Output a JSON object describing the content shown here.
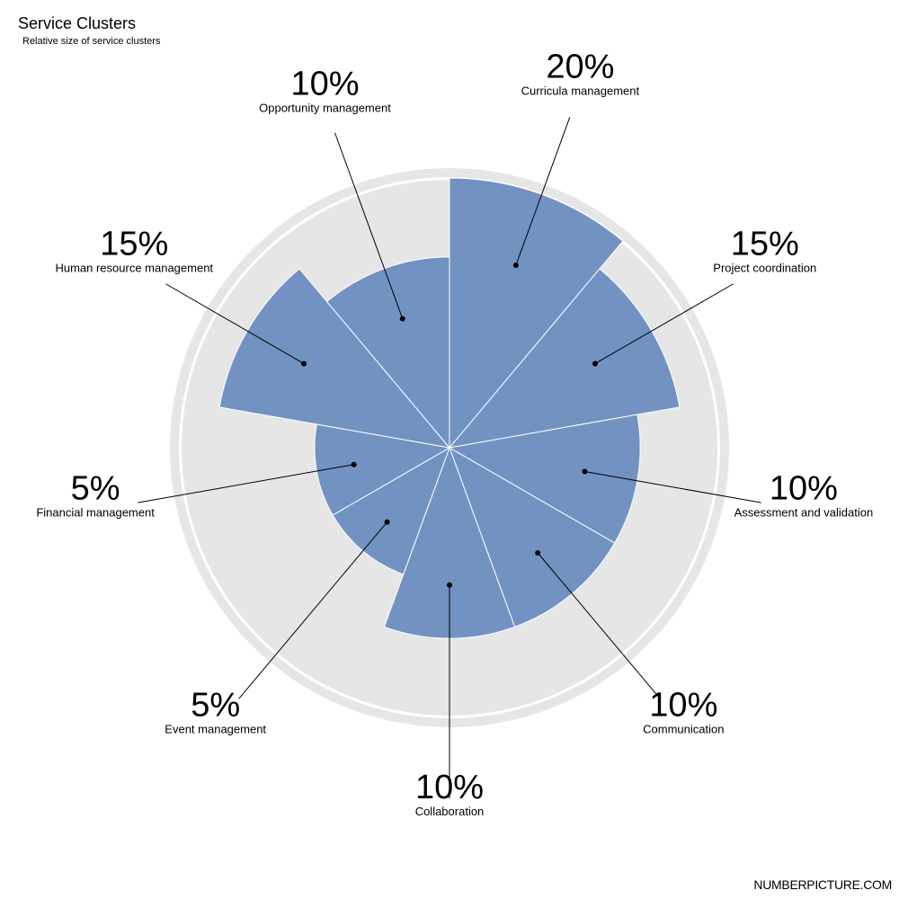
{
  "title": "Service Clusters",
  "subtitle": "Relative size of service clusters",
  "brand": "NUMBERPICTURE.COM",
  "colors": {
    "wedge": "#7293c2",
    "background_disc": "#e6e6e6",
    "ring": "#e6e6e6",
    "leader": "#000000"
  },
  "chart_data": {
    "type": "polar-area",
    "title": "Service Clusters",
    "subtitle": "Relative size of service clusters",
    "max": 20,
    "slices": [
      {
        "label": "Curricula management",
        "value": 20,
        "display": "20%"
      },
      {
        "label": "Project coordination",
        "value": 15,
        "display": "15%"
      },
      {
        "label": "Assessment and validation",
        "value": 10,
        "display": "10%"
      },
      {
        "label": "Communication",
        "value": 10,
        "display": "10%"
      },
      {
        "label": "Collaboration",
        "value": 10,
        "display": "10%"
      },
      {
        "label": "Event management",
        "value": 5,
        "display": "5%"
      },
      {
        "label": "Financial management",
        "value": 5,
        "display": "5%"
      },
      {
        "label": "Human resource management",
        "value": 15,
        "display": "15%"
      },
      {
        "label": "Opportunity management",
        "value": 10,
        "display": "10%"
      }
    ]
  }
}
